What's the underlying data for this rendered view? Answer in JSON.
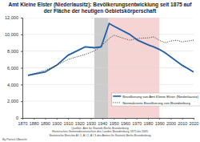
{
  "chart_data": {
    "type": "line",
    "title": "Amt Kleine Elster (Niederlausitz): Bevölkerungsentwicklung seit 1875 auf der Fläche der heutigen Gebietskörperschaft",
    "x": [
      1875,
      1890,
      1900,
      1910,
      1925,
      1933,
      1939,
      1946,
      1950,
      1964,
      1971,
      1981,
      1985,
      1990,
      1995,
      2000,
      2005,
      2010,
      2015,
      2020
    ],
    "series": [
      {
        "name": "Bevölkerung von Amt Kleine Elster (Niederlausitz)",
        "color": "#1f5fa8",
        "line_style": "solid",
        "values": [
          5100,
          5500,
          6300,
          7500,
          8500,
          8400,
          8500,
          11300,
          11000,
          10000,
          9300,
          8700,
          8500,
          8200,
          7800,
          7300,
          6800,
          6300,
          5900,
          5500
        ]
      },
      {
        "name": "Normalisierte Bevölkerung von Brandenburg",
        "color": "#333333",
        "line_style": "dotted",
        "values": [
          5100,
          5700,
          6300,
          7000,
          7600,
          8000,
          8600,
          9500,
          9900,
          9300,
          9500,
          9600,
          9700,
          9300,
          9000,
          9200,
          9300,
          9100,
          9200,
          9300
        ]
      }
    ],
    "bands": [
      {
        "start": 1933,
        "end": 1945,
        "color": "#bfbfbf"
      },
      {
        "start": 1945,
        "end": 1990,
        "color": "#f4c9c9"
      }
    ],
    "xlim": [
      1870,
      2020
    ],
    "xticks": [
      1870,
      1880,
      1890,
      1900,
      1910,
      1920,
      1930,
      1940,
      1950,
      1960,
      1970,
      1980,
      1990,
      2000,
      2010,
      2020
    ],
    "ylim": [
      0,
      12000
    ],
    "yticks": [
      0,
      {
        "value": 2000,
        "label": "2,000"
      },
      {
        "value": 4000,
        "label": "4,000"
      },
      {
        "value": 6000,
        "label": "6,000"
      },
      {
        "value": 8000,
        "label": "8,000"
      },
      {
        "value": 10000,
        "label": "10,000"
      },
      {
        "value": 12000,
        "label": "12,000"
      }
    ],
    "grid": true,
    "legend": "lower right",
    "source": [
      "Quellen: Amt für Statistik Berlin-Brandenburg",
      "Historisches Gemeindeverzeichnis des Landes Brandenburg 1875 bis 2005",
      "Statistische Berichte A I 1, A I 2, A I 3 des Amtes für Statistik Berlin-Brandenburg"
    ],
    "author": "By Patrick Ulbrecht"
  }
}
